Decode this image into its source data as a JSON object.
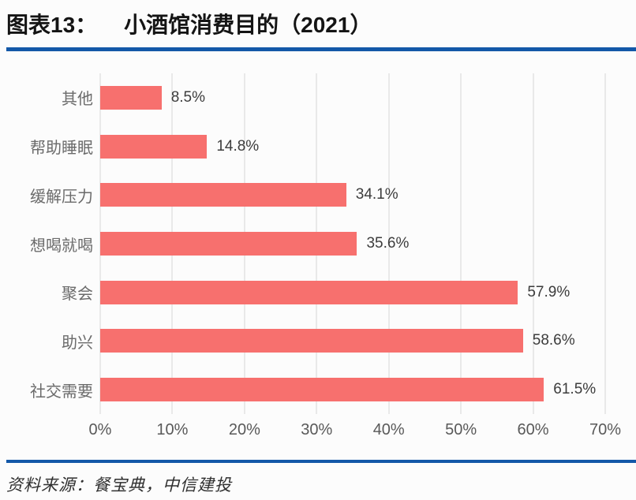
{
  "header": {
    "prefix": "图表13：",
    "title": "小酒馆消费目的（2021）"
  },
  "footer": {
    "source": "资料来源：餐宝典，中信建投"
  },
  "colors": {
    "accent_blue": "#1358a8",
    "bar": "#f7706e",
    "gridline": "#d6d6d6",
    "category_label": "#6b6b6b",
    "value_label": "#3c3c3c",
    "tick_label": "#595959"
  },
  "chart_data": {
    "type": "bar",
    "orientation": "horizontal",
    "title": "小酒馆消费目的（2021）",
    "categories": [
      "其他",
      "帮助睡眠",
      "缓解压力",
      "想喝就喝",
      "聚会",
      "助兴",
      "社交需要"
    ],
    "values": [
      8.5,
      14.8,
      34.1,
      35.6,
      57.9,
      58.6,
      61.5
    ],
    "value_labels": [
      "8.5%",
      "14.8%",
      "34.1%",
      "35.6%",
      "57.9%",
      "58.6%",
      "61.5%"
    ],
    "xlim": [
      0,
      70
    ],
    "x_tick_values": [
      0,
      10,
      20,
      30,
      40,
      50,
      60,
      70
    ],
    "x_tick_labels": [
      "0%",
      "10%",
      "20%",
      "30%",
      "40%",
      "50%",
      "60%",
      "70%"
    ],
    "grid": "vertical",
    "legend": "none"
  }
}
